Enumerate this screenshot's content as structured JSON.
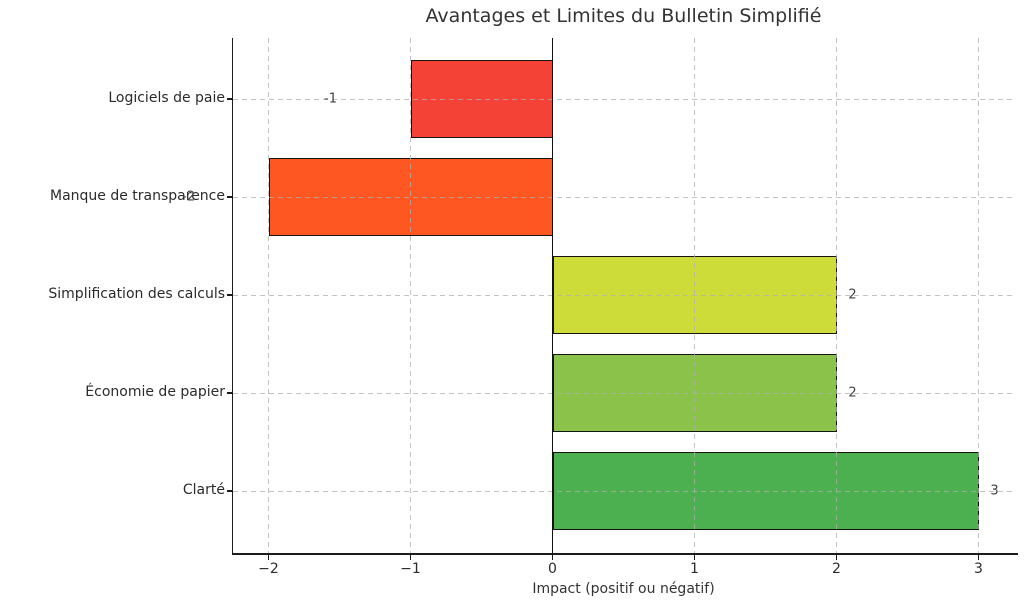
{
  "figure": {
    "title": "Avantages et Limites du Bulletin Simplifié",
    "background": "#ffffff"
  },
  "chart_data": {
    "type": "bar",
    "orientation": "horizontal",
    "title": "Avantages et Limites du Bulletin Simplifié",
    "xlabel": "Impact (positif ou négatif)",
    "ylabel": "",
    "categories": [
      "Logiciels de paie",
      "Manque de transparence",
      "Simplification des calculs",
      "Économie de papier",
      "Clarté"
    ],
    "values": [
      -1,
      -2,
      2,
      2,
      3
    ],
    "value_labels": [
      "-1",
      "-2",
      "2",
      "2",
      "3"
    ],
    "bar_colors": [
      "#f44336",
      "#ff5722",
      "#cddc39",
      "#8bc34a",
      "#4caf50"
    ],
    "bar_edge_color": "#141414",
    "xlim": [
      -2.25,
      3.25
    ],
    "x_ticks": [
      -2,
      -1,
      0,
      1,
      2,
      3
    ],
    "x_tick_labels": [
      "−2",
      "−1",
      "0",
      "1",
      "2",
      "3"
    ],
    "grid": true,
    "grid_style": "dashed",
    "grid_color": "#c9c9c9",
    "zero_line": true,
    "zero_line_color": "#111111",
    "legend": "none",
    "text_color": "#2b2b2b"
  }
}
